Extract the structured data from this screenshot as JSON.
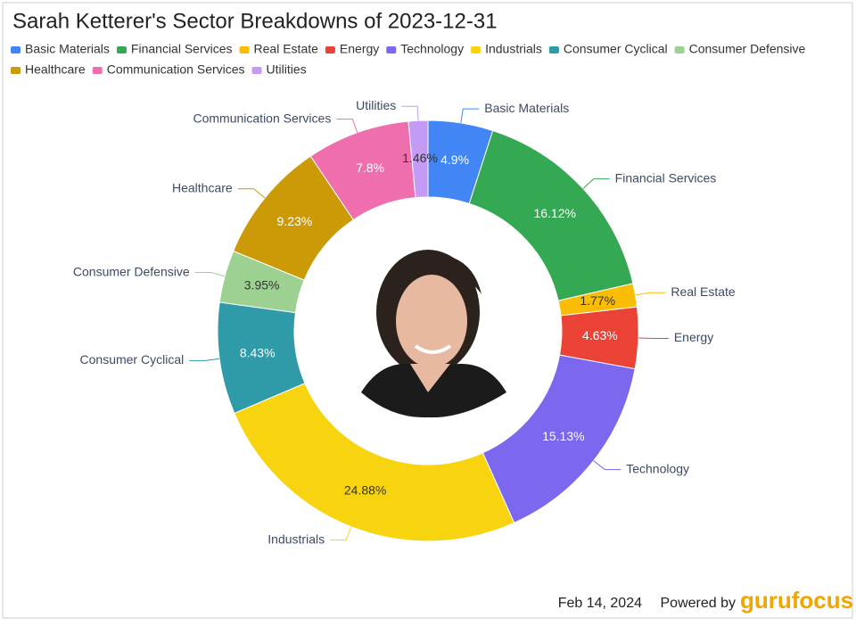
{
  "chart_data": {
    "type": "donut",
    "title": "Sarah Ketterer's Sector Breakdowns of 2023-12-31",
    "categories": [
      "Basic Materials",
      "Financial Services",
      "Real Estate",
      "Energy",
      "Technology",
      "Industrials",
      "Consumer Cyclical",
      "Consumer Defensive",
      "Healthcare",
      "Communication Services",
      "Utilities"
    ],
    "values": [
      4.9,
      16.12,
      1.77,
      4.63,
      15.13,
      24.88,
      8.43,
      3.95,
      9.23,
      7.8,
      1.46
    ],
    "value_labels": [
      "4.9%",
      "16.12%",
      "1.77%",
      "4.63%",
      "15.13%",
      "24.88%",
      "8.43%",
      "3.95%",
      "9.23%",
      "7.8%",
      "1.46%"
    ],
    "colors": [
      "#4285f4",
      "#34a853",
      "#fbbc04",
      "#ea4335",
      "#7b68ee",
      "#f7d40f",
      "#2f9aa8",
      "#9dd192",
      "#cc9a06",
      "#ef6fae",
      "#c39bf5"
    ],
    "legend": "top-left",
    "date": "Feb 14, 2024",
    "credit": "Powered by",
    "brand": "gurufocus"
  }
}
